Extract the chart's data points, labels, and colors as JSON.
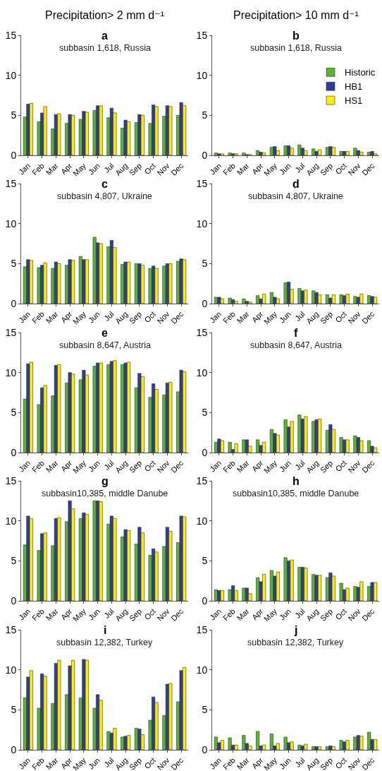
{
  "chart_data": [
    {
      "type": "bar",
      "title": "a",
      "subtitle": "subbasin 1,618, Russia",
      "annotations": [
        "Precipitation> 2 mm d⁻¹"
      ],
      "categories": [
        "Jan",
        "Feb",
        "Mar",
        "Apr",
        "May",
        "Jun",
        "Jul",
        "Aug",
        "Sep",
        "Oct",
        "Nov",
        "Dec"
      ],
      "ylim": [
        0,
        15
      ],
      "yticks": [
        0,
        5,
        10,
        15
      ],
      "grid": false,
      "legend": false,
      "series": [
        {
          "color": "#5ab52e",
          "values": [
            4.8,
            4.2,
            3.3,
            4.0,
            4.5,
            5.6,
            4.7,
            3.4,
            4.1,
            4.0,
            4.9,
            5.0
          ]
        },
        {
          "color": "#2e3e96",
          "values": [
            6.4,
            5.3,
            5.1,
            5.1,
            5.5,
            6.2,
            5.9,
            4.4,
            5.1,
            6.3,
            6.2,
            6.6
          ]
        },
        {
          "color": "#ffec00",
          "values": [
            6.5,
            6.1,
            5.2,
            5.0,
            5.4,
            6.2,
            5.3,
            4.2,
            5.0,
            6.1,
            6.1,
            6.2
          ]
        }
      ]
    },
    {
      "type": "bar",
      "title": "b",
      "subtitle": "subbasin 1,618, Russia",
      "annotations": [
        "Precipitation> 10 mm d⁻¹"
      ],
      "categories": [
        "Jan",
        "Feb",
        "Mar",
        "Apr",
        "May",
        "Jun",
        "Jul",
        "Aug",
        "Sep",
        "Oct",
        "Nov",
        "Dec"
      ],
      "ylim": [
        0,
        15
      ],
      "yticks": [
        0,
        5,
        10,
        15
      ],
      "grid": false,
      "legend": "top right",
      "series": [
        {
          "name": "Historic",
          "color": "#5ab52e",
          "values": [
            0.3,
            0.3,
            0.3,
            0.6,
            1.0,
            1.2,
            1.3,
            0.8,
            1.0,
            0.5,
            0.9,
            0.4
          ]
        },
        {
          "name": "HB1",
          "color": "#2e3e96",
          "values": [
            0.2,
            0.2,
            0.1,
            0.4,
            1.1,
            1.2,
            0.9,
            0.5,
            1.1,
            0.5,
            0.6,
            0.5
          ]
        },
        {
          "name": "HS1",
          "color": "#ffec00",
          "values": [
            0.2,
            0.2,
            0.1,
            0.3,
            0.6,
            0.9,
            0.6,
            0.7,
            1.0,
            0.5,
            0.4,
            0.2
          ]
        }
      ]
    },
    {
      "type": "bar",
      "title": "c",
      "subtitle": "subbasin 4,807, Ukraine",
      "categories": [
        "Jan",
        "Feb",
        "Mar",
        "Apr",
        "May",
        "Jun",
        "Jul",
        "Aug",
        "Sep",
        "Oct",
        "Nov",
        "Dec"
      ],
      "ylim": [
        0,
        15
      ],
      "yticks": [
        0,
        5,
        10,
        15
      ],
      "grid": false,
      "legend": false,
      "series": [
        {
          "color": "#5ab52e",
          "values": [
            4.6,
            4.5,
            4.4,
            4.8,
            5.9,
            8.3,
            7.1,
            4.9,
            5.0,
            4.4,
            4.7,
            5.3
          ]
        },
        {
          "color": "#2e3e96",
          "values": [
            5.5,
            4.8,
            5.2,
            5.5,
            5.5,
            7.6,
            7.9,
            5.2,
            5.0,
            4.7,
            5.0,
            5.6
          ]
        },
        {
          "color": "#ffec00",
          "values": [
            5.4,
            5.1,
            5.0,
            5.4,
            5.5,
            7.5,
            7.0,
            5.2,
            4.8,
            4.4,
            5.0,
            5.5
          ]
        }
      ]
    },
    {
      "type": "bar",
      "title": "d",
      "subtitle": "subbasin 4,807, Ukraine",
      "categories": [
        "Jan",
        "Feb",
        "Mar",
        "Apr",
        "May",
        "Jun",
        "Jul",
        "Aug",
        "Sep",
        "Oct",
        "Nov",
        "Dec"
      ],
      "ylim": [
        0,
        15
      ],
      "yticks": [
        0,
        5,
        10,
        15
      ],
      "grid": false,
      "legend": false,
      "series": [
        {
          "color": "#5ab52e",
          "values": [
            0.8,
            0.7,
            0.6,
            1.0,
            1.4,
            2.6,
            1.9,
            1.6,
            1.1,
            1.1,
            0.9,
            1.0
          ]
        },
        {
          "color": "#2e3e96",
          "values": [
            0.8,
            0.5,
            0.3,
            0.6,
            0.8,
            2.7,
            1.6,
            1.4,
            0.7,
            1.0,
            0.8,
            0.9
          ]
        },
        {
          "color": "#ffec00",
          "values": [
            0.6,
            0.3,
            0.2,
            1.2,
            0.6,
            1.8,
            1.7,
            1.1,
            1.1,
            1.2,
            1.2,
            0.8
          ]
        }
      ]
    },
    {
      "type": "bar",
      "title": "e",
      "subtitle": "subbasin 8,647, Austria",
      "categories": [
        "Jan",
        "Feb",
        "Mar",
        "Apr",
        "May",
        "Jun",
        "Jul",
        "Aug",
        "Sep",
        "Oct",
        "Nov",
        "Dec"
      ],
      "ylim": [
        0,
        15
      ],
      "yticks": [
        0,
        5,
        10,
        15
      ],
      "grid": false,
      "legend": false,
      "series": [
        {
          "color": "#5ab52e",
          "values": [
            6.7,
            6.0,
            7.1,
            8.7,
            9.1,
            10.8,
            11.0,
            11.0,
            8.1,
            6.9,
            7.2,
            7.6
          ]
        },
        {
          "color": "#2e3e96",
          "values": [
            11.1,
            8.1,
            10.9,
            10.0,
            10.3,
            11.2,
            11.4,
            11.2,
            9.9,
            8.6,
            8.7,
            10.3
          ]
        },
        {
          "color": "#ffec00",
          "values": [
            11.3,
            8.4,
            11.0,
            9.8,
            9.7,
            11.2,
            11.5,
            11.3,
            9.5,
            7.9,
            8.8,
            10.1
          ]
        }
      ]
    },
    {
      "type": "bar",
      "title": "f",
      "subtitle": "subbasin 8,647, Austria",
      "categories": [
        "Jan",
        "Feb",
        "Mar",
        "Apr",
        "May",
        "Jun",
        "Jul",
        "Aug",
        "Sep",
        "Oct",
        "Nov",
        "Dec"
      ],
      "ylim": [
        0,
        15
      ],
      "yticks": [
        0,
        5,
        10,
        15
      ],
      "grid": false,
      "legend": false,
      "series": [
        {
          "color": "#5ab52e",
          "values": [
            1.3,
            1.3,
            1.6,
            1.6,
            2.9,
            4.1,
            4.7,
            3.9,
            2.8,
            1.9,
            2.1,
            1.5
          ]
        },
        {
          "color": "#2e3e96",
          "values": [
            1.7,
            0.4,
            1.6,
            0.9,
            2.4,
            3.2,
            4.2,
            4.1,
            3.5,
            1.6,
            1.9,
            0.8
          ]
        },
        {
          "color": "#ffec00",
          "values": [
            1.5,
            1.1,
            0.8,
            1.3,
            2.2,
            3.9,
            4.5,
            4.2,
            2.9,
            1.6,
            1.5,
            0.6
          ]
        }
      ]
    },
    {
      "type": "bar",
      "title": "g",
      "subtitle": "subbasin10,385, middle Danube",
      "categories": [
        "Jan",
        "Feb",
        "Mar",
        "Apr",
        "May",
        "Jun",
        "Jul",
        "Aug",
        "Sep",
        "Oct",
        "Nov",
        "Dec"
      ],
      "ylim": [
        0,
        15
      ],
      "yticks": [
        0,
        5,
        10,
        15
      ],
      "grid": false,
      "legend": false,
      "series": [
        {
          "color": "#5ab52e",
          "values": [
            7.0,
            6.3,
            6.9,
            9.9,
            10.3,
            12.5,
            9.6,
            8.0,
            7.1,
            5.7,
            6.8,
            7.3
          ]
        },
        {
          "color": "#2e3e96",
          "values": [
            10.6,
            8.4,
            10.3,
            12.5,
            11.0,
            12.5,
            10.6,
            8.9,
            9.2,
            6.5,
            9.2,
            10.6
          ]
        },
        {
          "color": "#ffec00",
          "values": [
            10.3,
            8.5,
            10.4,
            11.5,
            10.8,
            12.4,
            10.3,
            8.8,
            8.5,
            6.1,
            8.7,
            10.5
          ]
        }
      ]
    },
    {
      "type": "bar",
      "title": "h",
      "subtitle": "subbasin10,385, middle Danube",
      "categories": [
        "Jan",
        "Feb",
        "Mar",
        "Apr",
        "May",
        "Jun",
        "Jul",
        "Aug",
        "Sep",
        "Oct",
        "Nov",
        "Dec"
      ],
      "ylim": [
        0,
        15
      ],
      "yticks": [
        0,
        5,
        10,
        15
      ],
      "grid": false,
      "legend": false,
      "series": [
        {
          "color": "#5ab52e",
          "values": [
            1.4,
            1.4,
            1.6,
            2.9,
            3.8,
            5.4,
            4.2,
            3.3,
            2.9,
            2.2,
            1.8,
            1.8
          ]
        },
        {
          "color": "#2e3e96",
          "values": [
            1.3,
            1.9,
            1.6,
            2.4,
            3.1,
            5.0,
            4.2,
            3.2,
            3.5,
            1.4,
            1.7,
            2.3
          ]
        },
        {
          "color": "#ffec00",
          "values": [
            1.3,
            1.3,
            0.9,
            3.3,
            3.6,
            5.1,
            4.1,
            3.2,
            3.1,
            1.6,
            2.4,
            2.3
          ]
        }
      ]
    },
    {
      "type": "bar",
      "title": "i",
      "subtitle": "subbasin 12,382, Turkey",
      "categories": [
        "Jan",
        "Feb",
        "Mar",
        "Apr",
        "May",
        "Jun",
        "Jul",
        "Aug",
        "Sep",
        "Oct",
        "Nov",
        "Dec"
      ],
      "ylim": [
        0,
        15
      ],
      "yticks": [
        0,
        5,
        10,
        15
      ],
      "grid": false,
      "legend": false,
      "series": [
        {
          "color": "#5ab52e",
          "values": [
            6.5,
            5.2,
            5.8,
            6.9,
            6.5,
            5.2,
            2.3,
            1.6,
            2.7,
            3.7,
            4.3,
            6.0
          ]
        },
        {
          "color": "#2e3e96",
          "values": [
            9.1,
            9.5,
            10.8,
            10.5,
            11.3,
            6.9,
            2.1,
            1.7,
            2.6,
            6.6,
            8.2,
            9.9
          ]
        },
        {
          "color": "#ffec00",
          "values": [
            9.9,
            9.2,
            11.2,
            11.2,
            11.2,
            6.2,
            2.7,
            1.8,
            1.9,
            5.9,
            8.3,
            10.3
          ]
        }
      ]
    },
    {
      "type": "bar",
      "title": "j",
      "subtitle": "subbasin 12,382, Turkey",
      "categories": [
        "Jan",
        "Feb",
        "Mar",
        "Apr",
        "May",
        "Jun",
        "Jul",
        "Aug",
        "Sep",
        "Oct",
        "Nov",
        "Dec"
      ],
      "ylim": [
        0,
        15
      ],
      "yticks": [
        0,
        5,
        10,
        15
      ],
      "grid": false,
      "legend": false,
      "series": [
        {
          "color": "#5ab52e",
          "values": [
            1.6,
            1.5,
            1.8,
            2.3,
            2.0,
            1.6,
            0.6,
            0.4,
            0.4,
            1.2,
            1.6,
            2.2
          ]
        },
        {
          "color": "#2e3e96",
          "values": [
            0.9,
            0.6,
            0.8,
            0.5,
            0.5,
            0.9,
            0.5,
            0.4,
            0.5,
            1.0,
            1.8,
            1.3
          ]
        },
        {
          "color": "#ffec00",
          "values": [
            1.2,
            0.6,
            0.5,
            0.6,
            0.8,
            1.0,
            0.7,
            0.4,
            0.4,
            1.2,
            1.7,
            1.3
          ]
        }
      ]
    }
  ]
}
